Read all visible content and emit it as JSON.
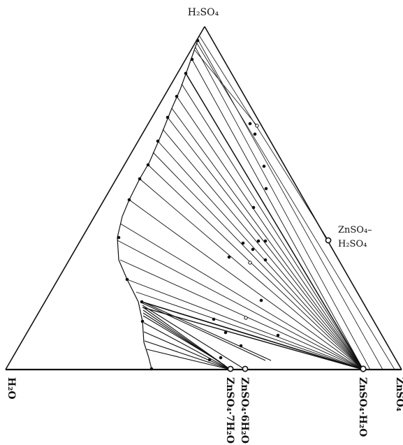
{
  "diagram": {
    "vertex_top_label": "H₂SO₄",
    "vertex_left_label": "H₂O",
    "vertex_right_label": "ZnSO₄",
    "compound_labels": {
      "hepta": "ZnSO₄·7H₂O",
      "hexa": "ZnSO₄·6H₂O",
      "mono": "ZnSO₄·H₂O",
      "acid_salt_line1": "ZnSO₄–",
      "acid_salt_line2": "H₂SO₄"
    }
  }
}
